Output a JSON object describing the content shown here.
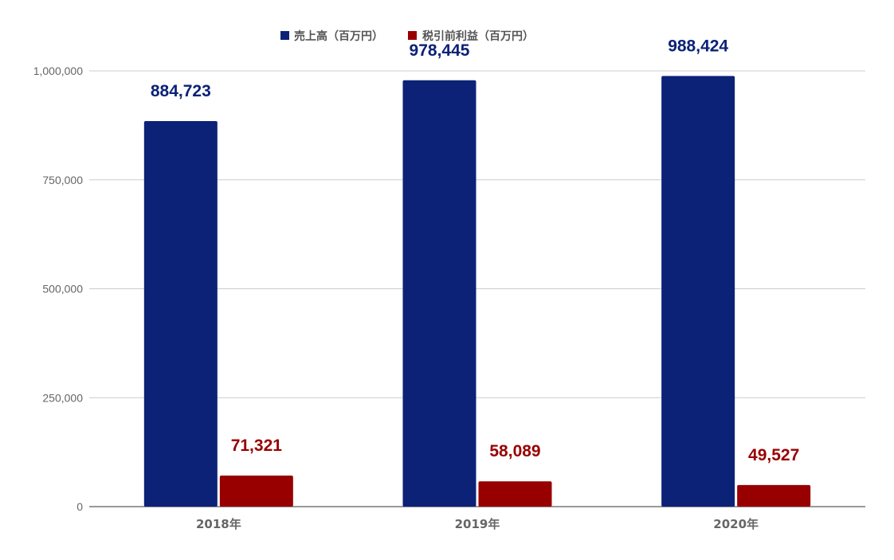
{
  "chart_data": {
    "type": "bar",
    "categories": [
      "2018年",
      "2019年",
      "2020年"
    ],
    "series": [
      {
        "name": "売上高（百万円）",
        "color": "#0b2277",
        "values": [
          884723,
          978445,
          988424
        ],
        "labels": [
          "884,723",
          "978,445",
          "988,424"
        ]
      },
      {
        "name": "税引前利益（百万円）",
        "color": "#980000",
        "values": [
          71321,
          58089,
          49527
        ],
        "labels": [
          "71,321",
          "58,089",
          "49,527"
        ]
      }
    ],
    "ylim": [
      0,
      1000000
    ],
    "yticks": [
      0,
      250000,
      500000,
      750000,
      1000000
    ],
    "ytick_labels": [
      "0",
      "250,000",
      "500,000",
      "750,000",
      "1,000,000"
    ],
    "grid": true,
    "legend_position": "top",
    "title": "",
    "xlabel": "",
    "ylabel": ""
  }
}
